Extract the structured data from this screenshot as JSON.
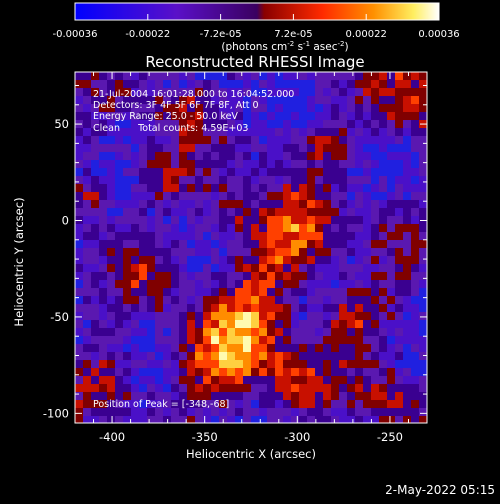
{
  "colorbar": {
    "ticks": [
      "-0.00036",
      "-0.00022",
      "-7.2e-05",
      "7.2e-05",
      "0.00022",
      "0.00036"
    ],
    "units_prefix": "(photons cm",
    "units_sup1": "-2",
    "units_mid": " s",
    "units_sup2": "-1",
    "units_end": " asec",
    "units_sup3": "-2",
    "units_close": ")",
    "colors": [
      "#0000ff",
      "#6600cc",
      "#aa0000",
      "#ff6600",
      "#ffff66",
      "#ffffff"
    ]
  },
  "plot": {
    "title": "Reconstructed RHESSI Image",
    "info_lines": [
      "21-Jul-2004 16:01:28.000 to 16:04:52.000",
      "Detectors: 3F 4F 5F 6F 7F 8F, Att 0",
      "Energy Range: 25.0 - 50.0 keV",
      "Clean      Total counts: 4.59E+03"
    ],
    "peak_label": "Position of Peak = [-348,-68]"
  },
  "footer": {
    "timestamp": "2-May-2022 05:15"
  },
  "chart_data": {
    "type": "heatmap",
    "title": "Reconstructed RHESSI Image",
    "xlabel": "Heliocentric X (arcsec)",
    "ylabel": "Heliocentric Y (arcsec)",
    "xlim": [
      -420,
      -230
    ],
    "ylim": [
      -105,
      77
    ],
    "x_ticks": [
      -400,
      -350,
      -300,
      -250
    ],
    "y_ticks": [
      -100,
      -50,
      0,
      50
    ],
    "colorbar_range": [
      -0.00036,
      0.00036
    ],
    "peak": [
      -348,
      -68
    ],
    "colorbar_units": "photons cm^-2 s^-1 asec^-2"
  }
}
